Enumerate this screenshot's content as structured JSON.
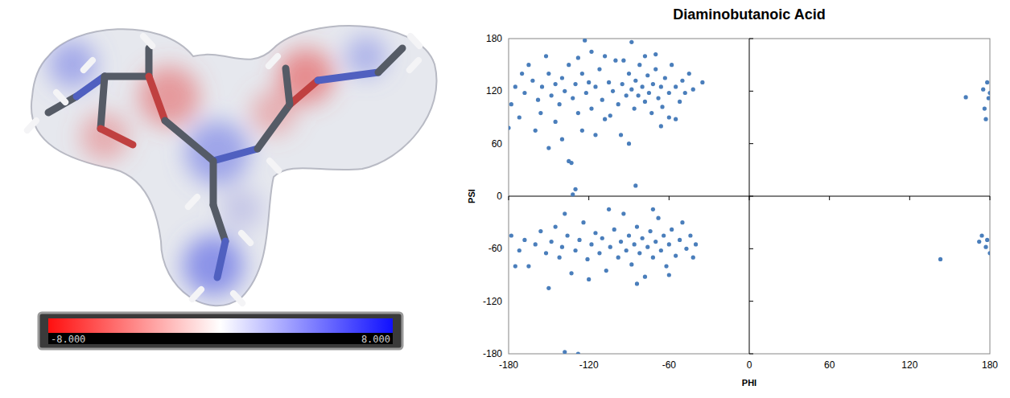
{
  "chart_data": {
    "type": "scatter",
    "title": "Diaminobutanoic Acid",
    "x_label": "PHI",
    "y_label": "PSI",
    "xlim": [
      -180,
      180
    ],
    "ylim": [
      -180,
      180
    ],
    "xticks": [
      -180,
      -120,
      -60,
      0,
      60,
      120,
      180
    ],
    "yticks": [
      -180,
      -120,
      -60,
      0,
      60,
      120,
      180
    ],
    "color": "#4a7ebb",
    "marker": "circle",
    "grid": false,
    "x": [
      -175,
      -168,
      -162,
      -158,
      -155,
      -150,
      -148,
      -145,
      -142,
      -140,
      -138,
      -135,
      -132,
      -130,
      -128,
      -125,
      -122,
      -120,
      -118,
      -115,
      -112,
      -110,
      -108,
      -105,
      -102,
      -100,
      -98,
      -95,
      -92,
      -90,
      -88,
      -86,
      -85,
      -83,
      -82,
      -80,
      -78,
      -76,
      -75,
      -73,
      -72,
      -70,
      -68,
      -66,
      -65,
      -63,
      -60,
      -58,
      -55,
      -52,
      -50,
      -48,
      -45,
      -42,
      -172,
      -165,
      -160,
      -152,
      -145,
      -140,
      -135,
      -133,
      -150,
      -125,
      -118,
      -108,
      -96,
      -90,
      -115,
      -78,
      -66,
      -60,
      -178,
      -170,
      -156,
      -128,
      -104,
      -94,
      -70,
      -55,
      -35,
      -180,
      -123,
      -88,
      -130,
      -132,
      -85,
      162,
      178,
      175,
      179,
      176,
      177,
      180,
      -178,
      -172,
      -168,
      -165,
      -160,
      -156,
      -152,
      -148,
      -145,
      -142,
      -140,
      -136,
      -133,
      -130,
      -127,
      -124,
      -121,
      -118,
      -115,
      -112,
      -110,
      -107,
      -104,
      -101,
      -98,
      -96,
      -94,
      -92,
      -90,
      -88,
      -86,
      -84,
      -82,
      -80,
      -78,
      -76,
      -74,
      -72,
      -70,
      -68,
      -66,
      -64,
      -62,
      -60,
      -58,
      -55,
      -52,
      -50,
      -47,
      -44,
      -42,
      -40,
      -150,
      -175,
      -138,
      -105,
      -72,
      -84,
      -120,
      -60,
      -138,
      -128,
      143,
      172,
      174,
      177,
      180,
      178
    ],
    "values": [
      125,
      118,
      132,
      110,
      125,
      140,
      115,
      128,
      105,
      135,
      120,
      150,
      112,
      128,
      95,
      140,
      118,
      130,
      100,
      125,
      145,
      110,
      88,
      130,
      120,
      155,
      105,
      128,
      115,
      140,
      122,
      100,
      132,
      115,
      150,
      125,
      108,
      138,
      118,
      95,
      128,
      145,
      112,
      125,
      102,
      135,
      118,
      150,
      125,
      108,
      132,
      118,
      140,
      122,
      90,
      150,
      75,
      160,
      85,
      65,
      40,
      38,
      55,
      75,
      165,
      160,
      70,
      60,
      70,
      160,
      80,
      90,
      105,
      140,
      95,
      158,
      92,
      155,
      162,
      88,
      130,
      78,
      178,
      176,
      8,
      2,
      12,
      113,
      130,
      122,
      112,
      100,
      88,
      118,
      -45,
      -62,
      -50,
      -80,
      -55,
      -40,
      -65,
      -52,
      -35,
      -70,
      -58,
      -45,
      -88,
      -62,
      -50,
      -30,
      -72,
      -55,
      -42,
      -65,
      -48,
      -85,
      -58,
      -38,
      -70,
      -52,
      -20,
      -62,
      -45,
      -78,
      -55,
      -35,
      -65,
      -48,
      -92,
      -58,
      -40,
      -70,
      -52,
      -25,
      -62,
      -45,
      -80,
      -55,
      -38,
      -68,
      -50,
      -30,
      -60,
      -45,
      -70,
      -55,
      -105,
      -80,
      -20,
      -15,
      -15,
      -100,
      -95,
      -90,
      -178,
      -180,
      -72,
      -52,
      -45,
      -58,
      -65,
      -50
    ]
  },
  "colorbar": {
    "range": [
      -8,
      8
    ],
    "ticks": [
      {
        "value": -8,
        "label": "-8.000"
      },
      {
        "value": 8,
        "label": "8.000"
      }
    ]
  }
}
